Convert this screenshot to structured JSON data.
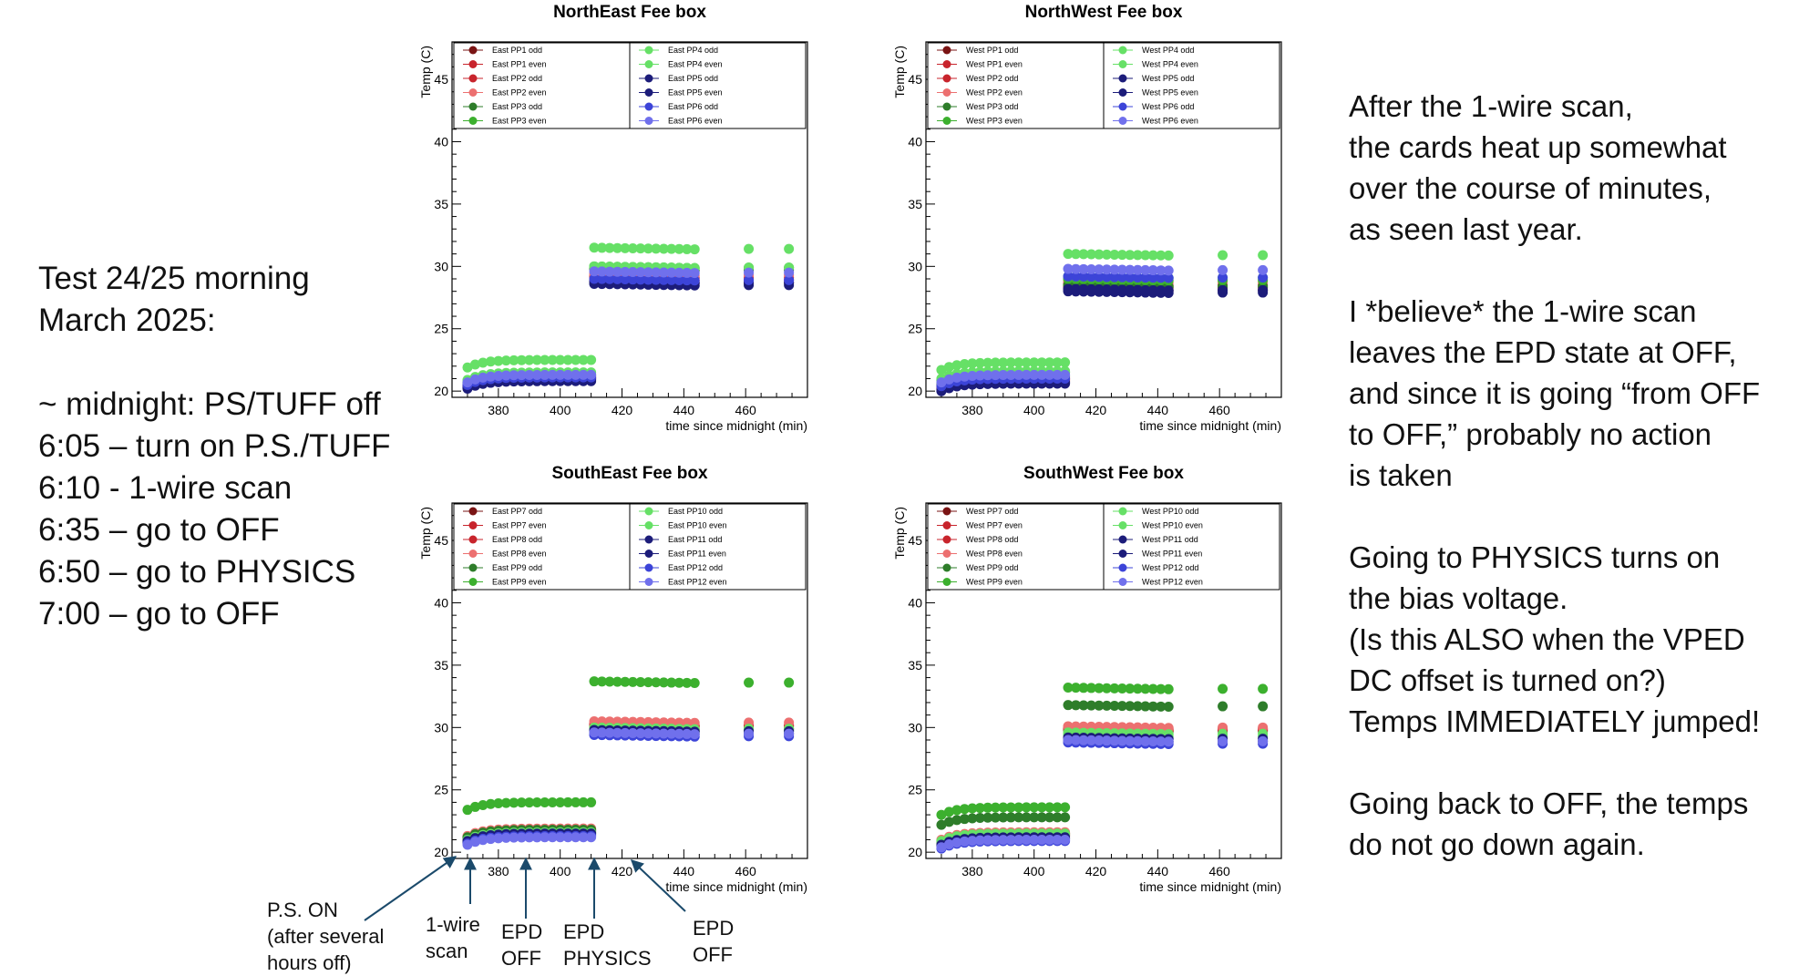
{
  "left_notes": [
    "Test 24/25 morning",
    "March 2025:",
    "",
    "~ midnight: PS/TUFF off",
    "6:05 – turn on P.S./TUFF",
    "6:10 - 1-wire scan",
    "6:35 – go to OFF",
    "6:50 – go to PHYSICS",
    "7:00 – go to OFF"
  ],
  "right_notes": [
    "After the 1-wire scan,",
    "the cards heat up somewhat",
    "over the course of minutes,",
    "as seen last year.",
    "",
    "I *believe* the 1-wire scan",
    "leaves the EPD state at OFF,",
    "and since it is going “from OFF",
    "to OFF,” probably no action",
    "is taken",
    "",
    "Going to PHYSICS turns on",
    "the bias voltage.",
    "(Is this ALSO when the VPED",
    "DC offset is turned on?)",
    "Temps IMMEDIATELY jumped!",
    "",
    "Going back to OFF, the temps",
    "do not go down again."
  ],
  "annotations": [
    {
      "text": "P.S. ON\n(after several\nhours off)"
    },
    {
      "text": "1-wire\nscan"
    },
    {
      "text": "EPD\nOFF"
    },
    {
      "text": "EPD\nPHYSICS"
    },
    {
      "text": "EPD\nOFF"
    }
  ],
  "colors": {
    "dark_red": "#7a1414",
    "red": "#c8242c",
    "light_red": "#ec7070",
    "dark_green": "#2e7d2a",
    "green": "#3cb02e",
    "light_green": "#66e066",
    "navy": "#1c1c7a",
    "blue": "#3c44d8",
    "light_blue": "#7070ec"
  },
  "chart_data": [
    {
      "type": "scatter",
      "title": "NorthEast Fee box",
      "xlabel": "time since midnight (min)",
      "ylabel": "Temp (C)",
      "xlim": [
        365,
        480
      ],
      "ylim": [
        19.5,
        48
      ],
      "xticks": [
        380,
        400,
        420,
        440,
        460
      ],
      "yticks": [
        20,
        25,
        30,
        35,
        40,
        45
      ],
      "legend_placement": "top",
      "series": [
        {
          "name": "East PP1 odd",
          "color": "#7a1414",
          "phase1": 21.0,
          "phase2": 28.8
        },
        {
          "name": "East PP1 even",
          "color": "#c8242c",
          "phase1": 21.0,
          "phase2": 29.0
        },
        {
          "name": "East PP2 odd",
          "color": "#c8242c",
          "phase1": 21.1,
          "phase2": 29.2
        },
        {
          "name": "East PP2 even",
          "color": "#ec7070",
          "phase1": 21.2,
          "phase2": 29.4
        },
        {
          "name": "East PP3 odd",
          "color": "#2e7d2a",
          "phase1": 21.2,
          "phase2": 29.8
        },
        {
          "name": "East PP3 even",
          "color": "#3cb02e",
          "phase1": 21.3,
          "phase2": 30.0
        },
        {
          "name": "East PP4 odd",
          "color": "#66e066",
          "phase1": 22.5,
          "phase2": 31.5
        },
        {
          "name": "East PP4 even",
          "color": "#66e066",
          "phase1": 21.5,
          "phase2": 30.0
        },
        {
          "name": "East PP5 odd",
          "color": "#1c1c7a",
          "phase1": 20.8,
          "phase2": 28.6
        },
        {
          "name": "East PP5 even",
          "color": "#1c1c7a",
          "phase1": 20.9,
          "phase2": 28.8
        },
        {
          "name": "East PP6 odd",
          "color": "#3c44d8",
          "phase1": 21.1,
          "phase2": 29.0
        },
        {
          "name": "East PP6 even",
          "color": "#7070ec",
          "phase1": 21.3,
          "phase2": 29.6
        }
      ]
    },
    {
      "type": "scatter",
      "title": "NorthWest Fee box",
      "xlabel": "time since midnight (min)",
      "ylabel": "Temp (C)",
      "xlim": [
        365,
        480
      ],
      "ylim": [
        19.5,
        48
      ],
      "xticks": [
        380,
        400,
        420,
        440,
        460
      ],
      "yticks": [
        20,
        25,
        30,
        35,
        40,
        45
      ],
      "legend_placement": "top",
      "series": [
        {
          "name": "West PP1 odd",
          "color": "#7a1414",
          "phase1": 20.8,
          "phase2": 28.2
        },
        {
          "name": "West PP1 even",
          "color": "#c8242c",
          "phase1": 20.9,
          "phase2": 28.4
        },
        {
          "name": "West PP2 odd",
          "color": "#c8242c",
          "phase1": 21.0,
          "phase2": 28.6
        },
        {
          "name": "West PP2 even",
          "color": "#ec7070",
          "phase1": 21.1,
          "phase2": 28.8
        },
        {
          "name": "West PP3 odd",
          "color": "#2e7d2a",
          "phase1": 21.2,
          "phase2": 28.5
        },
        {
          "name": "West PP3 even",
          "color": "#3cb02e",
          "phase1": 21.5,
          "phase2": 29.0
        },
        {
          "name": "West PP4 odd",
          "color": "#66e066",
          "phase1": 22.3,
          "phase2": 31.0
        },
        {
          "name": "West PP4 even",
          "color": "#66e066",
          "phase1": 21.6,
          "phase2": 29.2
        },
        {
          "name": "West PP5 odd",
          "color": "#1c1c7a",
          "phase1": 20.6,
          "phase2": 28.0
        },
        {
          "name": "West PP5 even",
          "color": "#1c1c7a",
          "phase1": 20.7,
          "phase2": 28.2
        },
        {
          "name": "West PP6 odd",
          "color": "#3c44d8",
          "phase1": 21.0,
          "phase2": 29.2
        },
        {
          "name": "West PP6 even",
          "color": "#7070ec",
          "phase1": 21.3,
          "phase2": 29.8
        }
      ]
    },
    {
      "type": "scatter",
      "title": "SouthEast Fee box",
      "xlabel": "time since midnight (min)",
      "ylabel": "Temp (C)",
      "xlim": [
        365,
        480
      ],
      "ylim": [
        19.5,
        48
      ],
      "xticks": [
        380,
        400,
        420,
        440,
        460
      ],
      "yticks": [
        20,
        25,
        30,
        35,
        40,
        45
      ],
      "legend_placement": "top",
      "series": [
        {
          "name": "East PP7 odd",
          "color": "#7a1414",
          "phase1": 21.6,
          "phase2": 30.0
        },
        {
          "name": "East PP7 even",
          "color": "#c8242c",
          "phase1": 21.7,
          "phase2": 30.2
        },
        {
          "name": "East PP8 odd",
          "color": "#c8242c",
          "phase1": 21.8,
          "phase2": 30.3
        },
        {
          "name": "East PP8 even",
          "color": "#ec7070",
          "phase1": 21.9,
          "phase2": 30.5
        },
        {
          "name": "East PP9 odd",
          "color": "#2e7d2a",
          "phase1": 21.8,
          "phase2": 29.9
        },
        {
          "name": "East PP9 even",
          "color": "#3cb02e",
          "phase1": 24.0,
          "phase2": 33.7
        },
        {
          "name": "East PP10 odd",
          "color": "#66e066",
          "phase1": 21.6,
          "phase2": 30.0
        },
        {
          "name": "East PP10 even",
          "color": "#66e066",
          "phase1": 21.5,
          "phase2": 29.8
        },
        {
          "name": "East PP11 odd",
          "color": "#1c1c7a",
          "phase1": 21.4,
          "phase2": 29.6
        },
        {
          "name": "East PP11 even",
          "color": "#1c1c7a",
          "phase1": 21.5,
          "phase2": 29.8
        },
        {
          "name": "East PP12 odd",
          "color": "#3c44d8",
          "phase1": 21.3,
          "phase2": 29.4
        },
        {
          "name": "East PP12 even",
          "color": "#7070ec",
          "phase1": 21.2,
          "phase2": 29.6
        }
      ]
    },
    {
      "type": "scatter",
      "title": "SouthWest Fee box",
      "xlabel": "time since midnight (min)",
      "ylabel": "Temp (C)",
      "xlim": [
        365,
        480
      ],
      "ylim": [
        19.5,
        48
      ],
      "xticks": [
        380,
        400,
        420,
        440,
        460
      ],
      "yticks": [
        20,
        25,
        30,
        35,
        40,
        45
      ],
      "legend_placement": "top",
      "series": [
        {
          "name": "West PP7 odd",
          "color": "#7a1414",
          "phase1": 21.3,
          "phase2": 29.8
        },
        {
          "name": "West PP7 even",
          "color": "#c8242c",
          "phase1": 21.4,
          "phase2": 30.0
        },
        {
          "name": "West PP8 odd",
          "color": "#c8242c",
          "phase1": 21.5,
          "phase2": 29.9
        },
        {
          "name": "West PP8 even",
          "color": "#ec7070",
          "phase1": 21.6,
          "phase2": 30.1
        },
        {
          "name": "West PP9 odd",
          "color": "#2e7d2a",
          "phase1": 22.8,
          "phase2": 31.8
        },
        {
          "name": "West PP9 even",
          "color": "#3cb02e",
          "phase1": 23.6,
          "phase2": 33.2
        },
        {
          "name": "West PP10 odd",
          "color": "#66e066",
          "phase1": 21.5,
          "phase2": 29.6
        },
        {
          "name": "West PP10 even",
          "color": "#66e066",
          "phase1": 21.4,
          "phase2": 29.4
        },
        {
          "name": "West PP11 odd",
          "color": "#1c1c7a",
          "phase1": 21.2,
          "phase2": 29.2
        },
        {
          "name": "West PP11 even",
          "color": "#1c1c7a",
          "phase1": 21.1,
          "phase2": 29.0
        },
        {
          "name": "West PP12 odd",
          "color": "#3c44d8",
          "phase1": 20.9,
          "phase2": 28.8
        },
        {
          "name": "West PP12 even",
          "color": "#7070ec",
          "phase1": 21.0,
          "phase2": 29.0
        }
      ]
    }
  ]
}
